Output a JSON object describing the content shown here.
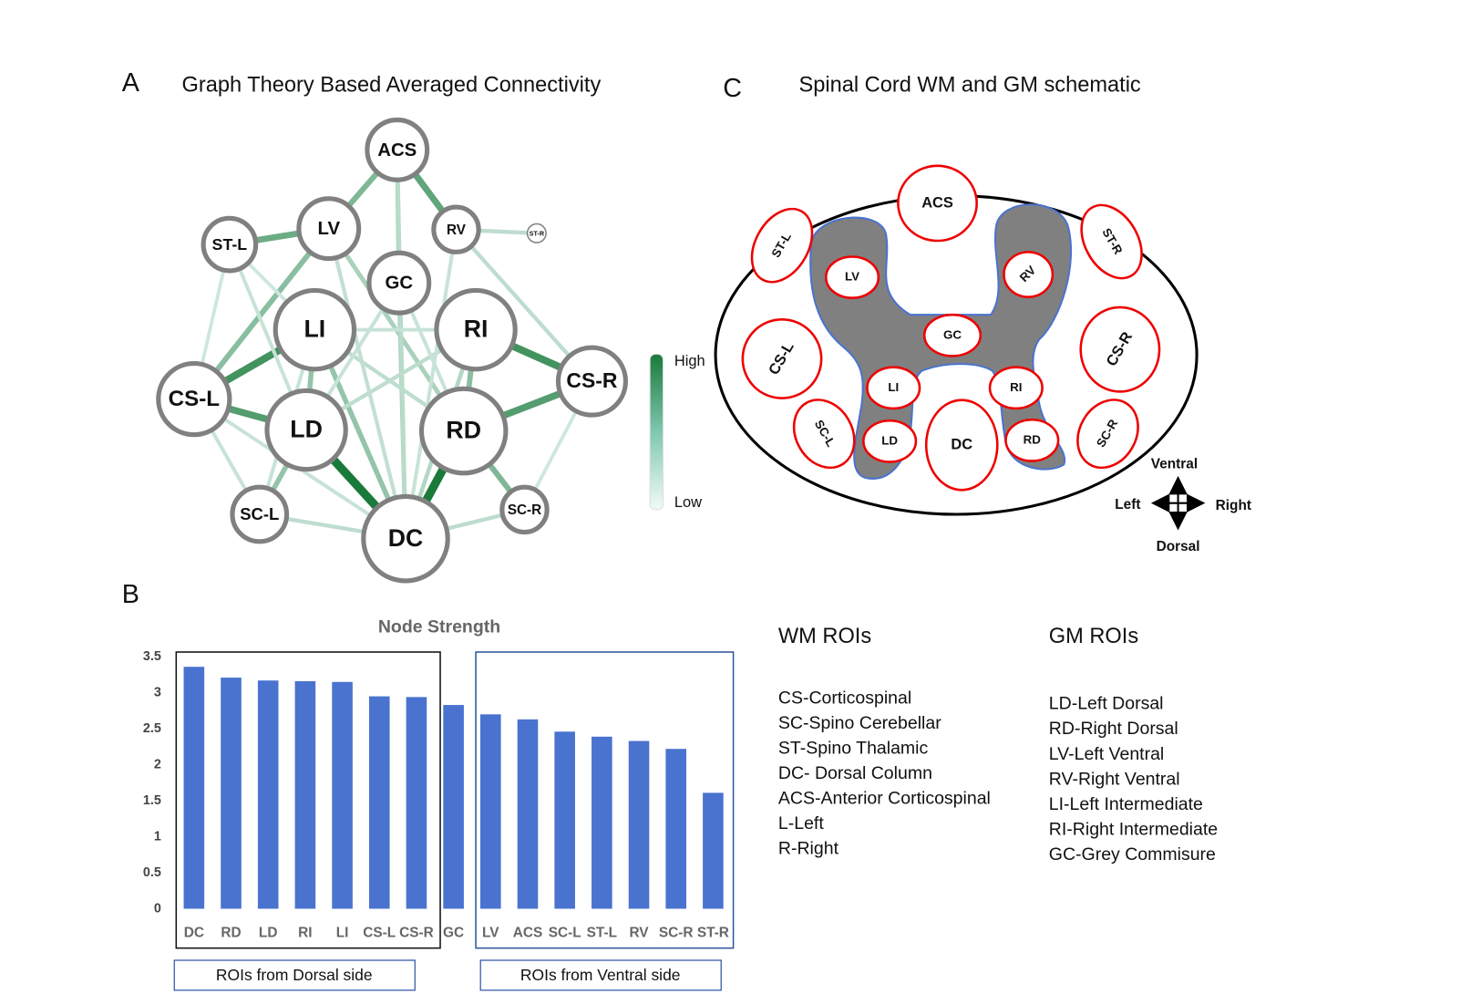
{
  "panel_a": {
    "letter": "A",
    "title": "Graph Theory Based Averaged Connectivity",
    "nodes": [
      "ACS",
      "LV",
      "RV",
      "ST-L",
      "ST-R",
      "GC",
      "LI",
      "RI",
      "CS-L",
      "CS-R",
      "LD",
      "RD",
      "SC-L",
      "SC-R",
      "DC"
    ],
    "colorbar": {
      "high": "High",
      "low": "Low"
    }
  },
  "panel_b": {
    "letter": "B"
  },
  "chart_data": {
    "type": "bar",
    "title": "Node Strength",
    "categories": [
      "DC",
      "RD",
      "LD",
      "RI",
      "LI",
      "CS-L",
      "CS-R",
      "GC",
      "LV",
      "ACS",
      "SC-L",
      "ST-L",
      "RV",
      "SC-R",
      "ST-R"
    ],
    "values": [
      3.36,
      3.21,
      3.17,
      3.16,
      3.15,
      2.95,
      2.94,
      2.83,
      2.7,
      2.63,
      2.46,
      2.39,
      2.33,
      2.22,
      1.61
    ],
    "color": "#4a73cf",
    "ylim": [
      0,
      3.5
    ],
    "yticks": [
      0,
      0.5,
      1,
      1.5,
      2,
      2.5,
      3,
      3.5
    ],
    "grid": false,
    "group_labels": [
      "ROIs from Dorsal side",
      "ROIs from Ventral side"
    ]
  },
  "panel_c": {
    "letter": "C",
    "title": "Spinal Cord WM and GM schematic",
    "rois": [
      "ACS",
      "ST-L",
      "LV",
      "RV",
      "ST-R",
      "GC",
      "CS-L",
      "CS-R",
      "LI",
      "RI",
      "SC-L",
      "LD",
      "DC",
      "RD",
      "SC-R"
    ],
    "directions": {
      "ventral": "Ventral",
      "left": "Left",
      "right": "Right",
      "dorsal": "Dorsal"
    }
  },
  "legend": {
    "wm_title": "WM ROIs",
    "wm_items": [
      "CS-Corticospinal",
      "SC-Spino Cerebellar",
      "ST-Spino Thalamic",
      "DC- Dorsal Column",
      "ACS-Anterior Corticospinal",
      "L-Left",
      "R-Right"
    ],
    "gm_title": "GM ROIs",
    "gm_items": [
      "LD-Left Dorsal",
      "RD-Right Dorsal",
      "LV-Left Ventral",
      "RV-Right Ventral",
      "LI-Left Intermediate",
      "RI-Right Intermediate",
      "GC-Grey Commisure"
    ]
  }
}
